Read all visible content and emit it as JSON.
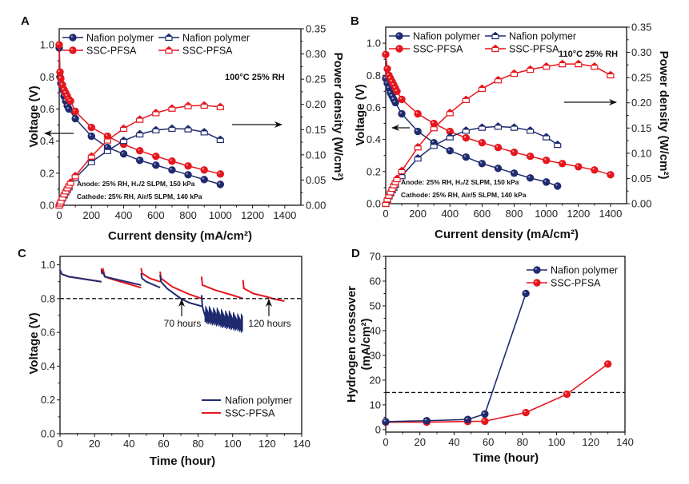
{
  "colors": {
    "nafion": "#1f2b6e",
    "ssc": "#e5161d",
    "axis": "#111111"
  },
  "chart_data": [
    {
      "id": "A",
      "type": "line",
      "panel_label": "A",
      "xlabel": "Current density (mA/cm²)",
      "ylabel": "Voltage (V)",
      "y2label": "Power density (W/cm²)",
      "xlim": [
        0,
        1500
      ],
      "ylim": [
        0,
        1.1
      ],
      "y2lim": [
        0,
        0.35
      ],
      "xticks": [
        0,
        200,
        400,
        600,
        800,
        1000,
        1200,
        1400
      ],
      "yticks": [
        0.0,
        0.2,
        0.4,
        0.6,
        0.8,
        1.0
      ],
      "y2ticks": [
        0.0,
        0.05,
        0.1,
        0.15,
        0.2,
        0.25,
        0.3,
        0.35
      ],
      "condition_label": "100°C 25% RH",
      "annotations": [
        "Anode: 25% RH, H₂/2 SLPM, 150 kPa",
        "Cathode: 25% RH, Air/5 SLPM, 140 kPa"
      ],
      "legend": [
        "Nafion polymer",
        "SSC-PFSA",
        "Nafion polymer",
        "SSC-PFSA"
      ],
      "series": [
        {
          "name": "Nafion polymer",
          "kind": "voltage",
          "axis": "left",
          "x": [
            0,
            5,
            10,
            20,
            30,
            40,
            50,
            60,
            100,
            200,
            300,
            400,
            500,
            600,
            700,
            800,
            900,
            1000
          ],
          "y": [
            0.98,
            0.8,
            0.76,
            0.72,
            0.68,
            0.65,
            0.62,
            0.6,
            0.54,
            0.43,
            0.36,
            0.32,
            0.28,
            0.25,
            0.22,
            0.19,
            0.16,
            0.13
          ]
        },
        {
          "name": "SSC-PFSA",
          "kind": "voltage",
          "axis": "left",
          "x": [
            0,
            5,
            10,
            20,
            30,
            40,
            50,
            60,
            70,
            100,
            200,
            300,
            400,
            500,
            600,
            700,
            800,
            900,
            1000
          ],
          "y": [
            1.0,
            0.83,
            0.79,
            0.75,
            0.72,
            0.7,
            0.68,
            0.66,
            0.65,
            0.585,
            0.485,
            0.43,
            0.38,
            0.34,
            0.305,
            0.275,
            0.245,
            0.22,
            0.195
          ]
        },
        {
          "name": "Nafion polymer",
          "kind": "power",
          "axis": "right",
          "x": [
            0,
            5,
            10,
            20,
            30,
            40,
            50,
            60,
            100,
            200,
            300,
            400,
            500,
            600,
            700,
            800,
            900,
            1000
          ],
          "y": [
            0.0,
            0.004,
            0.008,
            0.014,
            0.02,
            0.026,
            0.031,
            0.036,
            0.054,
            0.086,
            0.108,
            0.128,
            0.141,
            0.149,
            0.152,
            0.151,
            0.145,
            0.13
          ]
        },
        {
          "name": "SSC-PFSA",
          "kind": "power",
          "axis": "right",
          "x": [
            0,
            5,
            10,
            20,
            30,
            40,
            50,
            60,
            70,
            100,
            200,
            300,
            400,
            500,
            600,
            700,
            800,
            900,
            1000
          ],
          "y": [
            0.0,
            0.004,
            0.008,
            0.015,
            0.022,
            0.028,
            0.034,
            0.04,
            0.045,
            0.058,
            0.097,
            0.129,
            0.152,
            0.17,
            0.183,
            0.192,
            0.197,
            0.198,
            0.195
          ]
        }
      ]
    },
    {
      "id": "B",
      "type": "line",
      "panel_label": "B",
      "xlabel": "Current density (mA/cm²)",
      "ylabel": "Voltage (V)",
      "y2label": "Power density (W/cm²)",
      "xlim": [
        0,
        1500
      ],
      "ylim": [
        0,
        1.1
      ],
      "y2lim": [
        0,
        0.35
      ],
      "xticks": [
        0,
        200,
        400,
        600,
        800,
        1000,
        1200,
        1400
      ],
      "yticks": [
        0.0,
        0.2,
        0.4,
        0.6,
        0.8,
        1.0
      ],
      "y2ticks": [
        0.0,
        0.05,
        0.1,
        0.15,
        0.2,
        0.25,
        0.3,
        0.35
      ],
      "condition_label": "110°C 25% RH",
      "annotations": [
        "Anode: 25% RH, H₂/2 SLPM, 150 kPa",
        "Cathode: 25% RH, Air/5 SLPM, 140 kPa"
      ],
      "legend": [
        "Nafion polymer",
        "SSC-PFSA",
        "Nafion polymer",
        "SSC-PFSA"
      ],
      "series": [
        {
          "name": "Nafion polymer",
          "kind": "voltage",
          "axis": "left",
          "x": [
            0,
            10,
            20,
            30,
            40,
            50,
            60,
            100,
            200,
            300,
            400,
            500,
            600,
            700,
            800,
            900,
            1000,
            1070
          ],
          "y": [
            0.78,
            0.75,
            0.72,
            0.69,
            0.67,
            0.65,
            0.63,
            0.56,
            0.45,
            0.38,
            0.33,
            0.29,
            0.25,
            0.22,
            0.19,
            0.16,
            0.135,
            0.11
          ]
        },
        {
          "name": "SSC-PFSA",
          "kind": "voltage",
          "axis": "left",
          "x": [
            0,
            10,
            20,
            30,
            40,
            50,
            60,
            70,
            100,
            200,
            300,
            400,
            500,
            600,
            700,
            800,
            900,
            1000,
            1100,
            1200,
            1300,
            1400
          ],
          "y": [
            0.93,
            0.84,
            0.8,
            0.78,
            0.76,
            0.74,
            0.72,
            0.7,
            0.65,
            0.56,
            0.5,
            0.45,
            0.41,
            0.38,
            0.35,
            0.32,
            0.295,
            0.27,
            0.25,
            0.23,
            0.21,
            0.18
          ]
        },
        {
          "name": "Nafion polymer",
          "kind": "power",
          "axis": "right",
          "x": [
            0,
            10,
            20,
            30,
            40,
            50,
            60,
            100,
            200,
            300,
            400,
            500,
            600,
            700,
            800,
            900,
            1000,
            1070
          ],
          "y": [
            0.0,
            0.008,
            0.015,
            0.021,
            0.027,
            0.032,
            0.038,
            0.055,
            0.09,
            0.115,
            0.132,
            0.145,
            0.151,
            0.153,
            0.151,
            0.145,
            0.132,
            0.117
          ]
        },
        {
          "name": "SSC-PFSA",
          "kind": "power",
          "axis": "right",
          "x": [
            0,
            10,
            20,
            30,
            40,
            50,
            60,
            70,
            100,
            200,
            300,
            400,
            500,
            600,
            700,
            800,
            900,
            1000,
            1100,
            1200,
            1300,
            1400
          ],
          "y": [
            0.0,
            0.009,
            0.016,
            0.023,
            0.03,
            0.037,
            0.043,
            0.049,
            0.065,
            0.112,
            0.15,
            0.18,
            0.206,
            0.228,
            0.245,
            0.258,
            0.266,
            0.272,
            0.277,
            0.277,
            0.272,
            0.255
          ]
        }
      ]
    },
    {
      "id": "C",
      "type": "line",
      "panel_label": "C",
      "xlabel": "Time (hour)",
      "ylabel": "Voltage (V)",
      "xlim": [
        0,
        140
      ],
      "ylim": [
        0,
        1.05
      ],
      "xticks": [
        0,
        20,
        40,
        60,
        80,
        100,
        120,
        140
      ],
      "yticks": [
        0.0,
        0.2,
        0.4,
        0.6,
        0.8,
        1.0
      ],
      "reference_line": {
        "y": 0.8,
        "style": "dashed"
      },
      "annotations": [
        {
          "text": "70 hours",
          "x": 70,
          "y": 0.8
        },
        {
          "text": "120 hours",
          "x": 120,
          "y": 0.8
        }
      ],
      "legend": [
        "Nafion polymer",
        "SSC-PFSA"
      ],
      "series": [
        {
          "name": "Nafion polymer",
          "segments": [
            {
              "x": [
                0,
                1,
                5,
                24
              ],
              "y": [
                0.97,
                0.945,
                0.93,
                0.9
              ]
            },
            {
              "x": [
                24,
                24.3,
                25,
                26,
                30,
                47
              ],
              "y": [
                0.97,
                0.95,
                0.95,
                0.93,
                0.92,
                0.88
              ]
            },
            {
              "x": [
                47,
                47.5,
                50,
                58
              ],
              "y": [
                0.95,
                0.92,
                0.9,
                0.865
              ]
            },
            {
              "x": [
                58,
                58.5,
                62,
                70,
                75,
                82
              ],
              "y": [
                0.94,
                0.9,
                0.86,
                0.8,
                0.775,
                0.755
              ]
            },
            {
              "x": [
                82,
                82.5,
                84,
                90,
                100,
                106
              ],
              "y": [
                0.82,
                0.75,
                0.7,
                0.68,
                0.66,
                0.645
              ]
            }
          ]
        },
        {
          "name": "SSC-PFSA",
          "segments": [
            {
              "x": [
                0,
                1,
                5,
                24
              ],
              "y": [
                0.97,
                0.945,
                0.93,
                0.9
              ]
            },
            {
              "x": [
                24,
                24.3,
                25,
                26,
                30,
                47
              ],
              "y": [
                0.98,
                0.95,
                0.97,
                0.93,
                0.915,
                0.865
              ]
            },
            {
              "x": [
                47,
                47.5,
                52,
                58
              ],
              "y": [
                0.98,
                0.95,
                0.92,
                0.9
              ]
            },
            {
              "x": [
                58,
                58.5,
                65,
                75,
                82
              ],
              "y": [
                0.96,
                0.92,
                0.87,
                0.825,
                0.8
              ]
            },
            {
              "x": [
                82,
                82.5,
                90,
                100,
                106
              ],
              "y": [
                0.93,
                0.88,
                0.85,
                0.82,
                0.8
              ]
            },
            {
              "x": [
                106,
                106.5,
                112,
                120,
                125,
                130
              ],
              "y": [
                0.91,
                0.86,
                0.83,
                0.81,
                0.795,
                0.785
              ]
            }
          ]
        }
      ]
    },
    {
      "id": "D",
      "type": "line",
      "panel_label": "D",
      "xlabel": "Time (hour)",
      "ylabel": "Hydrogen crossover (mA/cm²)",
      "xlim": [
        0,
        140
      ],
      "ylim": [
        -1,
        70
      ],
      "xticks": [
        0,
        20,
        40,
        60,
        80,
        100,
        120,
        140
      ],
      "yticks": [
        0,
        10,
        20,
        30,
        40,
        50,
        60,
        70
      ],
      "reference_line": {
        "y": 15,
        "style": "dashed"
      },
      "legend": [
        "Nafion polymer",
        "SSC-PFSA"
      ],
      "series": [
        {
          "name": "Nafion polymer",
          "x": [
            0,
            24,
            48,
            58,
            82
          ],
          "y": [
            3.2,
            3.6,
            4.1,
            6.3,
            55
          ]
        },
        {
          "name": "SSC-PFSA",
          "x": [
            0,
            24,
            48,
            58,
            82,
            106,
            130
          ],
          "y": [
            3.0,
            3.0,
            3.3,
            3.4,
            6.9,
            14.3,
            26.5
          ]
        }
      ]
    }
  ]
}
